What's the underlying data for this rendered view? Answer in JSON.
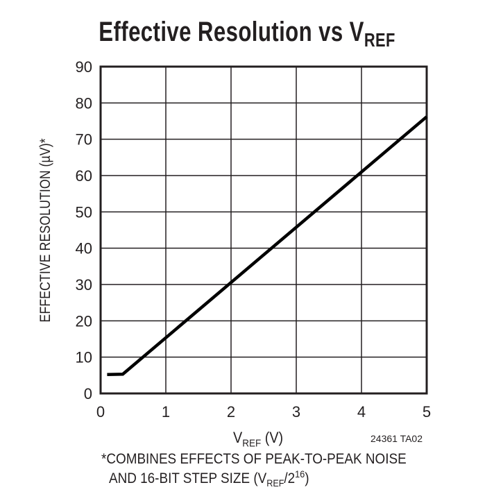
{
  "chart_data": {
    "type": "line",
    "title": "Effective Resolution vs V",
    "title_subscript": "REF",
    "xlabel": "V",
    "xlabel_subscript": "REF",
    "xlabel_unit": " (V)",
    "ylabel": "EFFECTIVE RESOLUTION (µV)*",
    "xlim": [
      0,
      5
    ],
    "ylim": [
      0,
      90
    ],
    "xticks": [
      "0",
      "1",
      "2",
      "3",
      "4",
      "5"
    ],
    "yticks": [
      "0",
      "10",
      "20",
      "30",
      "40",
      "50",
      "60",
      "70",
      "80",
      "90"
    ],
    "grid": true,
    "series": [
      {
        "x": [
          0.1,
          0.34,
          5.0
        ],
        "y": [
          5.2,
          5.3,
          76.2
        ],
        "color": "#000000"
      }
    ],
    "figure_id": "24361 TA02",
    "footnote_line1": "*COMBINES EFFECTS OF PEAK-TO-PEAK NOISE",
    "footnote_line2_a": "AND 16-BIT STEP SIZE (V",
    "footnote_line2_sub": "REF",
    "footnote_line2_b": "/2",
    "footnote_line2_sup": "16",
    "footnote_line2_c": ")"
  }
}
